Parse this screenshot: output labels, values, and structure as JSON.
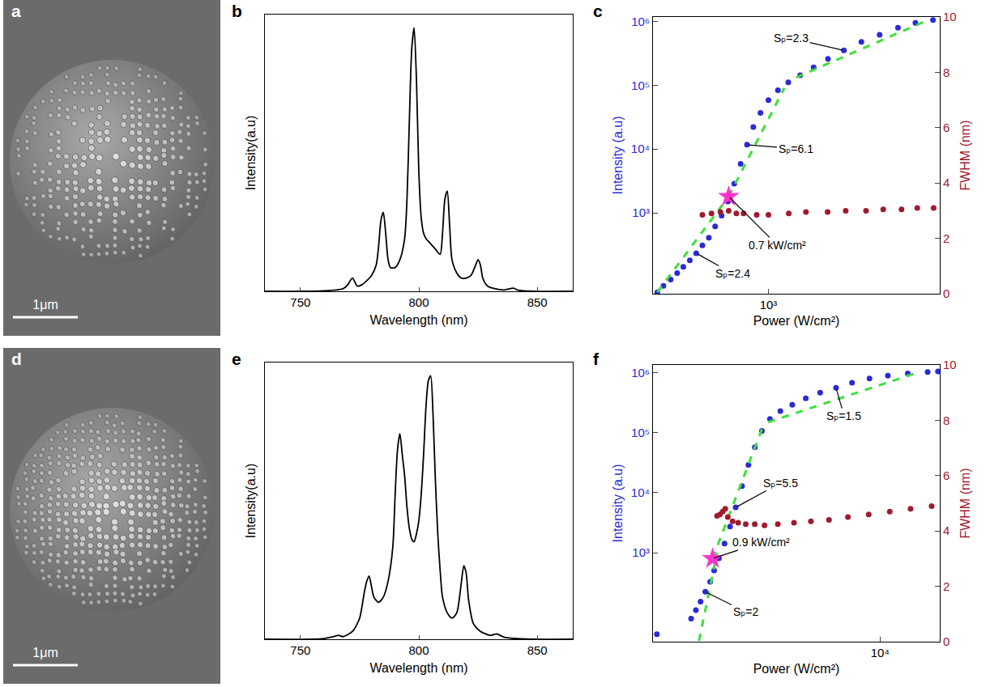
{
  "chart_data": [
    {
      "type": "image",
      "panel": "a",
      "scale_bar": "1μm"
    },
    {
      "type": "line",
      "panel": "b",
      "color": "#000000",
      "x_label": "Wavelength (nm)",
      "y_label": "Intensity(a.u)",
      "xlim": [
        735,
        865
      ],
      "xticks": [
        750,
        800,
        850
      ],
      "ylim": [
        0,
        1.05
      ],
      "tick_labels": "x",
      "x": [
        735,
        750,
        760,
        765,
        768,
        770,
        771,
        772,
        773,
        774,
        776,
        778,
        780,
        782,
        783,
        784,
        785,
        786,
        787,
        788,
        790,
        792,
        794,
        795,
        796,
        797,
        798,
        799,
        800,
        801,
        802,
        803,
        805,
        807,
        809,
        810,
        811,
        812,
        813,
        814,
        816,
        818,
        820,
        822,
        824,
        825,
        826,
        827,
        829,
        832,
        836,
        840,
        842,
        848,
        865
      ],
      "values": [
        0,
        0,
        0.002,
        0.005,
        0.01,
        0.025,
        0.04,
        0.05,
        0.035,
        0.02,
        0.025,
        0.04,
        0.06,
        0.1,
        0.17,
        0.27,
        0.3,
        0.22,
        0.12,
        0.09,
        0.09,
        0.12,
        0.2,
        0.35,
        0.65,
        0.92,
        1.0,
        0.8,
        0.45,
        0.28,
        0.22,
        0.2,
        0.18,
        0.16,
        0.14,
        0.22,
        0.35,
        0.38,
        0.25,
        0.12,
        0.07,
        0.05,
        0.05,
        0.06,
        0.1,
        0.12,
        0.1,
        0.05,
        0.02,
        0.01,
        0.005,
        0.012,
        0.004,
        0,
        0
      ]
    },
    {
      "type": "scatter",
      "panel": "c",
      "log": true,
      "x_label": "Power (W/cm²)",
      "y_label": "Intensity (a.u)",
      "y2_label": "FWHM (nm)",
      "xlim": [
        355,
        4650
      ],
      "xticks": [
        {
          "value": 1000,
          "label": "10³"
        }
      ],
      "ylim": [
        54,
        1170000
      ],
      "yticks": [
        {
          "value": 1000,
          "label": "10³"
        },
        {
          "value": 10000,
          "label": "10⁴"
        },
        {
          "value": 100000,
          "label": "10⁵"
        },
        {
          "value": 1000000,
          "label": "10⁶"
        }
      ],
      "y2lim": [
        0,
        10
      ],
      "y2ticks": [
        0,
        2,
        4,
        6,
        8,
        10
      ],
      "series": [
        {
          "type": "scatter",
          "marker": "circle",
          "color": "#2a2ad6",
          "x": [
            369,
            390,
            416,
            441,
            466,
            494,
            523,
            553,
            586,
            620,
            657,
            695,
            736,
            779,
            825,
            873,
            931,
            1000,
            1089,
            1195,
            1330,
            1500,
            1706,
            1968,
            2302,
            2711,
            3197,
            3738,
            4375
          ],
          "values": [
            57,
            72,
            90,
            114,
            143,
            180,
            233,
            308,
            408,
            615,
            903,
            1506,
            2856,
            5843,
            11660,
            22080,
            36890,
            58480,
            83570,
            110800,
            143100,
            189500,
            257700,
            350000,
            476000,
            615000,
            794000,
            950000,
            1052000
          ]
        },
        {
          "type": "scatter",
          "marker": "circle",
          "color": "#a01a2e",
          "axis": "y2",
          "x": [
            553,
            600,
            650,
            700,
            750,
            800,
            900,
            1000,
            1200,
            1400,
            1700,
            2000,
            2400,
            2800,
            3300,
            3800,
            4400
          ],
          "values": [
            2.85,
            2.9,
            2.95,
            3.0,
            2.9,
            2.9,
            2.85,
            2.85,
            2.9,
            2.95,
            2.95,
            3.0,
            3.0,
            3.05,
            3.05,
            3.1,
            3.1
          ]
        },
        {
          "type": "line",
          "line_style": "dashed",
          "color": "#3ee03a",
          "x": [
            369,
            700
          ],
          "values": [
            57,
            1800
          ]
        },
        {
          "type": "line",
          "line_style": "dashed",
          "color": "#3ee03a",
          "x": [
            700,
            1153
          ],
          "values": [
            1800,
            90300
          ]
        },
        {
          "type": "line",
          "line_style": "dashed",
          "color": "#3ee03a",
          "x": [
            1283,
            4015
          ],
          "values": [
            132000,
            977000
          ]
        },
        {
          "type": "scatter",
          "marker": "star",
          "color": "#ff33cc",
          "x": [
            700
          ],
          "values": [
            1800
          ]
        }
      ],
      "annotations": [
        {
          "text": "Sₚ=2.3",
          "x": 1968,
          "y": 350000
        },
        {
          "text": "Sₚ=6.1",
          "x": 825,
          "y": 11660
        },
        {
          "text": "Sₚ=2.4",
          "x": 523,
          "y": 233
        },
        {
          "text": "0.7 kW/cm²",
          "x": 700,
          "y": 1800
        }
      ]
    },
    {
      "type": "image",
      "panel": "d",
      "scale_bar": "1μm"
    },
    {
      "type": "line",
      "panel": "e",
      "color": "#000000",
      "x_label": "Wavelength (nm)",
      "y_label": "Intensity(a.u)",
      "xlim": [
        735,
        865
      ],
      "xticks": [
        750,
        800,
        850
      ],
      "ylim": [
        0,
        1.05
      ],
      "tick_labels": "x",
      "x": [
        735,
        755,
        760,
        764,
        766,
        768,
        772,
        775,
        777,
        778,
        779,
        780,
        781,
        783,
        785,
        787,
        789,
        790,
        791,
        792,
        793,
        794,
        795,
        796,
        797,
        798,
        799,
        800,
        801,
        802,
        803,
        804,
        805,
        806,
        807,
        808,
        809,
        810,
        812,
        814,
        816,
        818,
        819,
        820,
        821,
        823,
        826,
        830,
        833,
        836,
        840,
        848,
        865
      ],
      "values": [
        0,
        0,
        0.003,
        0.01,
        0.015,
        0.01,
        0.03,
        0.08,
        0.18,
        0.22,
        0.24,
        0.2,
        0.16,
        0.14,
        0.16,
        0.22,
        0.35,
        0.55,
        0.72,
        0.78,
        0.7,
        0.62,
        0.5,
        0.42,
        0.38,
        0.37,
        0.4,
        0.45,
        0.55,
        0.7,
        0.88,
        0.98,
        1.0,
        0.85,
        0.6,
        0.4,
        0.26,
        0.16,
        0.1,
        0.08,
        0.1,
        0.22,
        0.28,
        0.25,
        0.15,
        0.06,
        0.03,
        0.015,
        0.02,
        0.008,
        0.003,
        0,
        0
      ]
    },
    {
      "type": "scatter",
      "panel": "f",
      "log": true,
      "x_label": "Power (W/cm²)",
      "y_label": "Intensity (a.u)",
      "y2_label": "FWHM (nm)",
      "xlim": [
        382,
        23600
      ],
      "xticks": [
        {
          "value": 10000,
          "label": "10⁴"
        }
      ],
      "ylim": [
        33,
        1350000
      ],
      "yticks": [
        {
          "value": 1000,
          "label": "10³"
        },
        {
          "value": 10000,
          "label": "10⁴"
        },
        {
          "value": 100000,
          "label": "10⁵"
        },
        {
          "value": 1000000,
          "label": "10⁶"
        }
      ],
      "y2lim": [
        0,
        10
      ],
      "y2ticks": [
        0,
        2,
        4,
        6,
        8,
        10
      ],
      "series": [
        {
          "type": "scatter",
          "marker": "circle",
          "color": "#2a2ad6",
          "x": [
            404,
            661,
            708,
            757,
            811,
            869,
            920,
            986,
            1069,
            1157,
            1254,
            1374,
            1507,
            1652,
            1830,
            2053,
            2384,
            2831,
            3436,
            4227,
            5310,
            6683,
            8590,
            11190,
            14900,
            19820,
            23000
          ],
          "values": [
            44,
            80,
            111,
            153,
            224,
            328,
            507,
            805,
            1424,
            2735,
            5700,
            12880,
            29100,
            57400,
            107400,
            170300,
            229700,
            293600,
            375000,
            465900,
            563400,
            682000,
            801700,
            895000,
            971000,
            1025000,
            1052000
          ]
        },
        {
          "type": "scatter",
          "marker": "circle",
          "color": "#a01a2e",
          "axis": "y2",
          "x": [
            960,
            1000,
            1040,
            1080,
            1120,
            1200,
            1300,
            1450,
            1650,
            1900,
            2300,
            2900,
            3700,
            4800,
            6300,
            8500,
            11500,
            15500,
            21000
          ],
          "values": [
            4.55,
            4.6,
            4.7,
            4.8,
            4.5,
            4.35,
            4.3,
            4.25,
            4.25,
            4.2,
            4.25,
            4.3,
            4.35,
            4.4,
            4.5,
            4.6,
            4.7,
            4.8,
            4.9
          ]
        },
        {
          "type": "line",
          "line_style": "dashed",
          "color": "#3ee03a",
          "x": [
            740,
            960
          ],
          "values": [
            34,
            1000
          ]
        },
        {
          "type": "line",
          "line_style": "dashed",
          "color": "#3ee03a",
          "x": [
            900,
            1900
          ],
          "values": [
            800,
            150000
          ]
        },
        {
          "type": "line",
          "line_style": "dashed",
          "color": "#3ee03a",
          "x": [
            2000,
            17000
          ],
          "values": [
            150000,
            1000000
          ]
        },
        {
          "type": "scatter",
          "marker": "star",
          "color": "#ff33cc",
          "x": [
            900
          ],
          "values": [
            800
          ]
        }
      ],
      "annotations": [
        {
          "text": "Sₚ=1.5",
          "x": 5310,
          "y": 563400
        },
        {
          "text": "Sₚ=5.5",
          "x": 1254,
          "y": 5700
        },
        {
          "text": "0.9 kW/cm²",
          "x": 900,
          "y": 800
        },
        {
          "text": "Sₚ=2",
          "x": 811,
          "y": 224
        }
      ]
    }
  ]
}
